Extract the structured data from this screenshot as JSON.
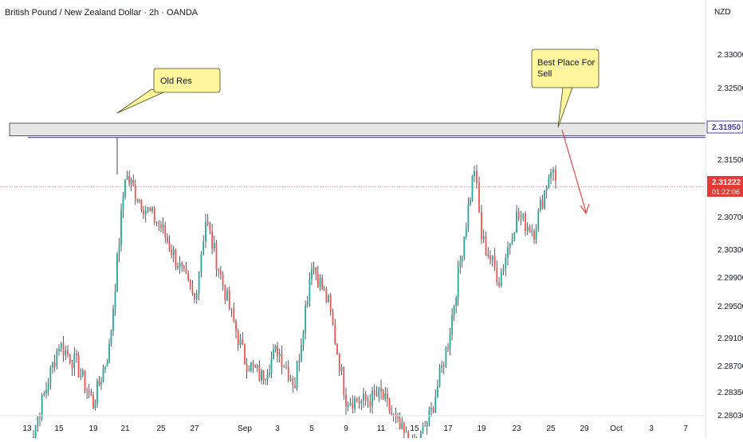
{
  "title": "British Pound / New Zealand Dollar · 2h · OANDA",
  "currency": "NZD",
  "colors": {
    "up": "#26a69a",
    "down": "#ef5350",
    "wick": "#131722",
    "zone_fill": "#e6e6e6",
    "resistance_line": "#3f3fa8",
    "current_price_line": "#f28b82",
    "price_tag_resistance": "#3f3fa8",
    "price_tag_current": "#e53935",
    "callout_fill": "#fff59d",
    "callout_border": "#4b4b1f",
    "arrow": "#e53935"
  },
  "annotations": {
    "old_res": "Old Res",
    "best_place_line1": "Best Place For",
    "best_place_line2": "Sell"
  },
  "price_tags": {
    "resistance": "2.31950",
    "current": "2.31222",
    "countdown": "01:22:06"
  },
  "chart_data": {
    "type": "candlestick",
    "title": "British Pound / New Zealand Dollar · 2h · OANDA",
    "ylabel": "NZD",
    "ylim": [
      2.2795,
      2.3355
    ],
    "x_tick_labels": [
      "13",
      "15",
      "19",
      "21",
      "25",
      "27",
      "Sep",
      "3",
      "5",
      "9",
      "11",
      "15",
      "17",
      "19",
      "23",
      "25",
      "29",
      "Oct",
      "3",
      "7"
    ],
    "y_tick_labels": [
      "2.33000",
      "2.32500",
      "2.31500",
      "2.30700",
      "2.30300",
      "2.29900",
      "2.29500",
      "2.29100",
      "2.28700",
      "2.28350",
      "2.28030"
    ],
    "resistance_zone": [
      2.3195,
      2.3213
    ],
    "resistance_level": 2.3195,
    "current_price": 2.31222,
    "path_points": [
      [
        "13",
        2.274
      ],
      [
        "15",
        2.2898
      ],
      [
        "17",
        2.2868
      ],
      [
        "19",
        2.2812
      ],
      [
        "20",
        2.289
      ],
      [
        "21",
        2.314
      ],
      [
        "23",
        2.3095
      ],
      [
        "25",
        2.3065
      ],
      [
        "27",
        2.296
      ],
      [
        "28",
        2.3075
      ],
      [
        "30",
        2.296
      ],
      [
        "Sep",
        2.2875
      ],
      [
        "2",
        2.285
      ],
      [
        "3",
        2.289
      ],
      [
        "4",
        2.284
      ],
      [
        "5",
        2.3015
      ],
      [
        "7",
        2.2955
      ],
      [
        "9",
        2.282
      ],
      [
        "10",
        2.2815
      ],
      [
        "11",
        2.2825
      ],
      [
        "13",
        2.278
      ],
      [
        "15",
        2.2745
      ],
      [
        "16",
        2.28
      ],
      [
        "17",
        2.29
      ],
      [
        "18",
        2.315
      ],
      [
        "19",
        2.305
      ],
      [
        "21",
        2.299
      ],
      [
        "22",
        2.3035
      ],
      [
        "23",
        2.308
      ],
      [
        "24",
        2.306
      ],
      [
        "25",
        2.315
      ],
      [
        "26",
        2.3122
      ]
    ],
    "grid": false
  }
}
